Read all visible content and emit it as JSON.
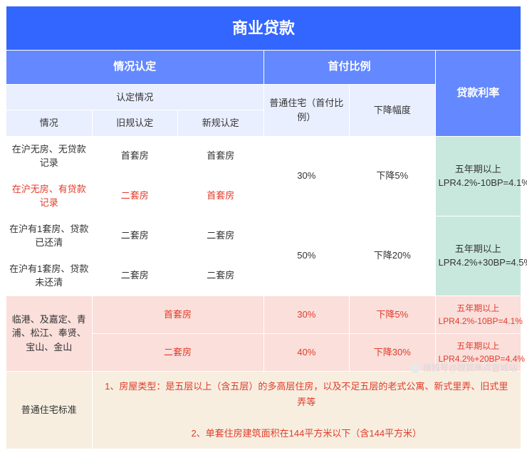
{
  "title": "商业贷款",
  "headers": {
    "situation": "情况认定",
    "downpay": "首付比例",
    "rate": "贷款利率"
  },
  "sub": {
    "recognition": "认定情况",
    "situation": "情况",
    "old": "旧规认定",
    "new": "新规认定",
    "ordinary": "普通住宅（首付比例）",
    "decrease": "下降幅度"
  },
  "rows": {
    "r1": {
      "sit": "在沪无房、无贷款记录",
      "old": "首套房",
      "new": "首套房"
    },
    "r2": {
      "sit": "在沪无房、有贷款记录",
      "old": "二套房",
      "new": "首套房"
    },
    "r3": {
      "sit": "在沪有1套房、贷款已还清",
      "old": "二套房",
      "new": "二套房"
    },
    "r4": {
      "sit": "在沪有1套房、贷款未还清",
      "old": "二套房",
      "new": "二套房"
    }
  },
  "dp": {
    "g1": {
      "ratio": "30%",
      "dec": "下降5%"
    },
    "g2": {
      "ratio": "50%",
      "dec": "下降20%"
    }
  },
  "rate": {
    "g1_l1": "五年期以上",
    "g1_l2": "LPR4.2%-10BP=4.1%",
    "g2_l1": "五年期以上",
    "g2_l2": "LPR4.2%+30BP=4.5%"
  },
  "pink": {
    "area": "临港、及嘉定、青浦、松江、奉贤、宝山、金山",
    "r1": {
      "cat": "首套房",
      "ratio": "30%",
      "dec": "下降5%",
      "rate_l1": "五年期以上",
      "rate_l2": "LPR4.2%-10BP=4.1%"
    },
    "r2": {
      "cat": "二套房",
      "ratio": "40%",
      "dec": "下降30%",
      "rate_l1": "五年期以上",
      "rate_l2": "LPR4.2%+20BP=4.4%"
    }
  },
  "note": {
    "label": "普通住宅标准",
    "l1": "1、房屋类型：是五层以上（含五层）的多高层住房，以及不足五层的老式公寓、新式里弄、旧式里弄等",
    "l2": "2、单套住房建筑面积在144平方米以下（含144平方米）"
  },
  "watermark": "搜狐号@搜狐焦点宣城站"
}
